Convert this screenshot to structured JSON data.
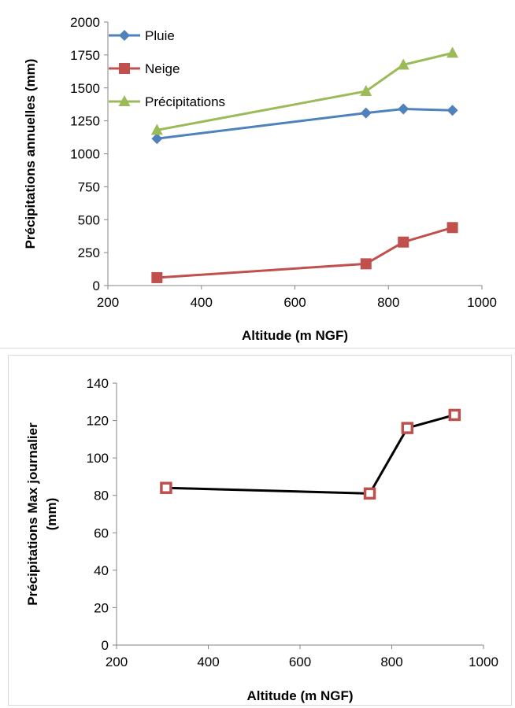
{
  "chart_data": [
    {
      "type": "line",
      "title": "",
      "xlabel": "Altitude (m NGF)",
      "ylabel": "Précipitations annuelles (mm)",
      "xlim": [
        200,
        1000
      ],
      "ylim": [
        0,
        2000
      ],
      "x_ticks": [
        "200",
        "400",
        "600",
        "800",
        "1000"
      ],
      "y_ticks": [
        "0",
        "250",
        "500",
        "750",
        "1000",
        "1250",
        "1500",
        "1750",
        "2000"
      ],
      "x": [
        305,
        752,
        832,
        937
      ],
      "legend_position": "top-left",
      "grid": false,
      "series": [
        {
          "name": "Pluie",
          "values": [
            1115,
            1310,
            1340,
            1330
          ],
          "color": "#4f81bd",
          "marker": "diamond"
        },
        {
          "name": "Neige",
          "values": [
            60,
            165,
            330,
            440
          ],
          "color": "#c0504d",
          "marker": "square"
        },
        {
          "name": "Précipitations",
          "values": [
            1180,
            1475,
            1675,
            1765
          ],
          "color": "#9bbb59",
          "marker": "triangle"
        }
      ]
    },
    {
      "type": "line",
      "title": "",
      "xlabel": "Altitude (m NGF)",
      "ylabel": "Précipitations Max journalier (mm)",
      "ylabel_lines": [
        "Précipitations Max journalier",
        "(mm)"
      ],
      "xlim": [
        200,
        1000
      ],
      "ylim": [
        0,
        140
      ],
      "x_ticks": [
        "200",
        "400",
        "600",
        "800",
        "1000"
      ],
      "y_ticks": [
        "0",
        "20",
        "40",
        "60",
        "80",
        "100",
        "120",
        "140"
      ],
      "x": [
        308,
        752,
        834,
        937
      ],
      "grid": false,
      "series": [
        {
          "values": [
            84,
            81,
            116,
            123
          ],
          "color": "#000000",
          "marker": "square-hollow",
          "marker_color": "#c0504d"
        }
      ]
    }
  ]
}
